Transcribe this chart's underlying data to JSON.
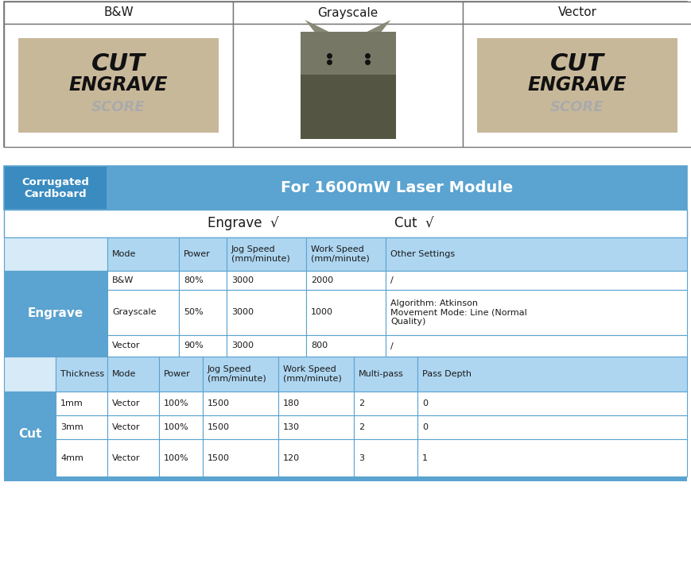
{
  "top_headers": [
    "B&W",
    "Grayscale",
    "Vector"
  ],
  "material_label": "Corrugated\nCardboard",
  "module_title": "For 1600mW Laser Module",
  "header_bg": "#5ba3d0",
  "header_dark_bg": "#3a8bbf",
  "light_blue_bg": "#aed6f1",
  "lighter_blue_bg": "#d6eaf8",
  "white_bg": "#ffffff",
  "engrave_header_cols": [
    "Mode",
    "Power",
    "Jog Speed\n(mm/minute)",
    "Work Speed\n(mm/minute)",
    "Other Settings"
  ],
  "engrave_rows": [
    [
      "B&W",
      "80%",
      "3000",
      "2000",
      "/"
    ],
    [
      "Grayscale",
      "50%",
      "3000",
      "1000",
      "Algorithm: Atkinson\nMovement Mode: Line (Normal\nQuality)"
    ],
    [
      "Vector",
      "90%",
      "3000",
      "800",
      "/"
    ]
  ],
  "cut_header_cols": [
    "Thickness",
    "Mode",
    "Power",
    "Jog Speed\n(mm/minute)",
    "Work Speed\n(mm/minute)",
    "Multi-pass",
    "Pass Depth"
  ],
  "cut_rows": [
    [
      "1mm",
      "Vector",
      "100%",
      "1500",
      "180",
      "2",
      "0"
    ],
    [
      "3mm",
      "Vector",
      "100%",
      "1500",
      "130",
      "2",
      "0"
    ],
    [
      "4mm",
      "Vector",
      "100%",
      "1500",
      "120",
      "3",
      "1"
    ]
  ],
  "text_white": "#ffffff",
  "text_dark": "#1a1a1a",
  "border_color": "#888888",
  "blue_border": "#5ba3d0",
  "img_bg": "#c8b89a",
  "img_text1": "#111111",
  "img_text2": "#aaaaaa",
  "top_table_border": "#777777"
}
